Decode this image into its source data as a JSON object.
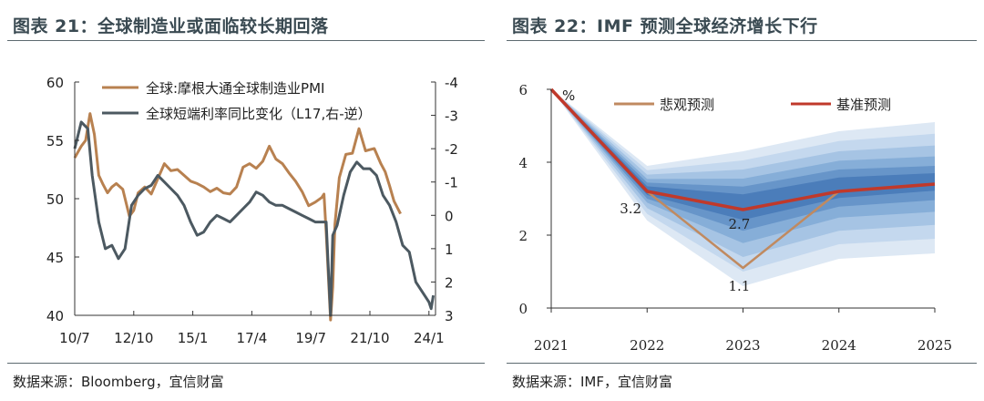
{
  "left_panel": {
    "title": "图表 21：全球制造业或面临较长期回落",
    "source": "数据来源：Bloomberg，宜信财富"
  },
  "right_panel": {
    "title": "图表 22：IMF 预测全球经济增长下行",
    "source": "数据来源：IMF，宜信财富"
  },
  "chart_data": [
    {
      "type": "line",
      "title": "图表 21：全球制造业或面临较长期回落",
      "x_tick_labels": [
        "10/7",
        "12/10",
        "15/1",
        "17/4",
        "19/7",
        "21/10",
        "24/1"
      ],
      "x_range": [
        "2010-07",
        "2024-04"
      ],
      "ylim_left": [
        40,
        60
      ],
      "y_ticks_left": [
        "60",
        "55",
        "50",
        "45",
        "40"
      ],
      "ylim_right": [
        -4,
        3
      ],
      "y_ticks_right": [
        "-4",
        "-3",
        "-2",
        "-1",
        "0",
        "1",
        "2",
        "3"
      ],
      "right_axis_inverted": true,
      "legend_position": "top-right",
      "series": [
        {
          "name": "全球:摩根大通全球制造业PMI",
          "axis": "left",
          "color": "#b88150",
          "points": [
            [
              "2010-07",
              53.5
            ],
            [
              "2010-10",
              54.5
            ],
            [
              "2010-12",
              55.0
            ],
            [
              "2011-02",
              57.3
            ],
            [
              "2011-04",
              55.5
            ],
            [
              "2011-06",
              52.0
            ],
            [
              "2011-08",
              51.2
            ],
            [
              "2011-10",
              50.5
            ],
            [
              "2011-12",
              51.0
            ],
            [
              "2012-02",
              51.3
            ],
            [
              "2012-05",
              50.8
            ],
            [
              "2012-08",
              48.5
            ],
            [
              "2012-10",
              49.0
            ],
            [
              "2012-12",
              50.5
            ],
            [
              "2013-03",
              51.0
            ],
            [
              "2013-06",
              50.4
            ],
            [
              "2013-09",
              51.7
            ],
            [
              "2013-12",
              53.0
            ],
            [
              "2014-03",
              52.4
            ],
            [
              "2014-06",
              52.5
            ],
            [
              "2014-09",
              52.0
            ],
            [
              "2014-12",
              51.5
            ],
            [
              "2015-03",
              51.3
            ],
            [
              "2015-06",
              51.0
            ],
            [
              "2015-09",
              50.6
            ],
            [
              "2015-12",
              50.9
            ],
            [
              "2016-03",
              50.5
            ],
            [
              "2016-06",
              50.4
            ],
            [
              "2016-09",
              51.0
            ],
            [
              "2016-12",
              52.7
            ],
            [
              "2017-03",
              53.0
            ],
            [
              "2017-06",
              52.6
            ],
            [
              "2017-09",
              53.2
            ],
            [
              "2017-12",
              54.5
            ],
            [
              "2018-03",
              53.4
            ],
            [
              "2018-06",
              53.0
            ],
            [
              "2018-09",
              52.2
            ],
            [
              "2018-12",
              51.5
            ],
            [
              "2019-03",
              50.6
            ],
            [
              "2019-06",
              49.4
            ],
            [
              "2019-09",
              49.7
            ],
            [
              "2019-12",
              50.1
            ],
            [
              "2020-01",
              50.4
            ],
            [
              "2020-02",
              47.1
            ],
            [
              "2020-04",
              39.6
            ],
            [
              "2020-05",
              42.4
            ],
            [
              "2020-06",
              47.8
            ],
            [
              "2020-08",
              51.8
            ],
            [
              "2020-11",
              53.8
            ],
            [
              "2021-02",
              53.9
            ],
            [
              "2021-05",
              56.0
            ],
            [
              "2021-08",
              54.1
            ],
            [
              "2021-10",
              54.2
            ],
            [
              "2021-12",
              54.3
            ],
            [
              "2022-03",
              53.0
            ],
            [
              "2022-05",
              52.3
            ],
            [
              "2022-07",
              51.1
            ],
            [
              "2022-09",
              49.8
            ],
            [
              "2022-12",
              48.7
            ]
          ]
        },
        {
          "name": "全球短端利率同比变化（L17,右-逆）",
          "axis": "right",
          "color": "#4c5961",
          "points": [
            [
              "2010-07",
              -2.0
            ],
            [
              "2010-10",
              -2.8
            ],
            [
              "2011-01",
              -2.6
            ],
            [
              "2011-03",
              -1.2
            ],
            [
              "2011-06",
              0.2
            ],
            [
              "2011-09",
              1.0
            ],
            [
              "2011-12",
              0.9
            ],
            [
              "2012-03",
              1.3
            ],
            [
              "2012-06",
              1.0
            ],
            [
              "2012-09",
              -0.3
            ],
            [
              "2012-12",
              -0.6
            ],
            [
              "2013-03",
              -0.8
            ],
            [
              "2013-06",
              -0.9
            ],
            [
              "2013-09",
              -1.2
            ],
            [
              "2013-12",
              -1.0
            ],
            [
              "2014-03",
              -0.8
            ],
            [
              "2014-06",
              -0.6
            ],
            [
              "2014-09",
              -0.3
            ],
            [
              "2014-12",
              0.2
            ],
            [
              "2015-03",
              0.6
            ],
            [
              "2015-06",
              0.5
            ],
            [
              "2015-09",
              0.2
            ],
            [
              "2015-12",
              0.0
            ],
            [
              "2016-03",
              0.1
            ],
            [
              "2016-06",
              0.2
            ],
            [
              "2016-09",
              0.0
            ],
            [
              "2016-12",
              -0.2
            ],
            [
              "2017-03",
              -0.4
            ],
            [
              "2017-06",
              -0.7
            ],
            [
              "2017-09",
              -0.6
            ],
            [
              "2017-12",
              -0.4
            ],
            [
              "2018-03",
              -0.3
            ],
            [
              "2018-06",
              -0.3
            ],
            [
              "2018-09",
              -0.2
            ],
            [
              "2018-12",
              -0.1
            ],
            [
              "2019-03",
              0.0
            ],
            [
              "2019-06",
              0.1
            ],
            [
              "2019-09",
              0.2
            ],
            [
              "2019-12",
              0.2
            ],
            [
              "2020-02",
              0.2
            ],
            [
              "2020-04",
              3.0
            ],
            [
              "2020-05",
              0.6
            ],
            [
              "2020-07",
              0.3
            ],
            [
              "2020-10",
              -0.6
            ],
            [
              "2021-01",
              -1.3
            ],
            [
              "2021-04",
              -1.6
            ],
            [
              "2021-07",
              -1.4
            ],
            [
              "2021-10",
              -1.4
            ],
            [
              "2022-01",
              -1.2
            ],
            [
              "2022-04",
              -0.6
            ],
            [
              "2022-07",
              -0.3
            ],
            [
              "2022-10",
              0.2
            ],
            [
              "2023-01",
              0.9
            ],
            [
              "2023-04",
              1.1
            ],
            [
              "2023-07",
              2.0
            ],
            [
              "2023-10",
              2.3
            ],
            [
              "2024-01",
              2.6
            ],
            [
              "2024-02",
              2.8
            ],
            [
              "2024-03",
              2.4
            ]
          ]
        }
      ]
    },
    {
      "type": "line",
      "title": "图表 22：IMF 预测全球经济增长下行",
      "x": [
        2021,
        2022,
        2023,
        2024,
        2025
      ],
      "x_tick_labels": [
        "2021",
        "2022",
        "2023",
        "2024",
        "2025"
      ],
      "ylim": [
        0,
        6
      ],
      "y_ticks": [
        "0",
        "2",
        "4",
        "6"
      ],
      "y_unit": "%",
      "legend_position": "top",
      "fan_bands": [
        {
          "upper": [
            6,
            3.9,
            4.3,
            4.85,
            5.1
          ],
          "lower": [
            6,
            2.4,
            0.6,
            1.35,
            1.5
          ]
        },
        {
          "upper": [
            6,
            3.78,
            4.05,
            4.58,
            4.78
          ],
          "lower": [
            6,
            2.58,
            1.0,
            1.75,
            1.9
          ]
        },
        {
          "upper": [
            6,
            3.66,
            3.8,
            4.3,
            4.46
          ],
          "lower": [
            6,
            2.74,
            1.4,
            2.12,
            2.28
          ]
        },
        {
          "upper": [
            6,
            3.54,
            3.55,
            4.04,
            4.16
          ],
          "lower": [
            6,
            2.89,
            1.78,
            2.48,
            2.64
          ]
        },
        {
          "upper": [
            6,
            3.44,
            3.33,
            3.8,
            3.9
          ],
          "lower": [
            6,
            3.0,
            2.12,
            2.78,
            2.96
          ]
        },
        {
          "upper": [
            6,
            3.34,
            3.12,
            3.58,
            3.7
          ],
          "lower": [
            6,
            3.1,
            2.42,
            3.02,
            3.22
          ]
        }
      ],
      "series": [
        {
          "name": "悲观预测",
          "color": "#c08a60",
          "values": [
            6.0,
            3.2,
            1.1,
            3.2,
            3.4
          ]
        },
        {
          "name": "基准预测",
          "color": "#c0392b",
          "values": [
            6.0,
            3.2,
            2.7,
            3.2,
            3.4
          ]
        }
      ],
      "annotations": [
        {
          "x": 2022,
          "y": 3.2,
          "text": "3.2"
        },
        {
          "x": 2023,
          "y": 2.7,
          "text": "2.7"
        },
        {
          "x": 2023,
          "y": 1.1,
          "text": "1.1"
        }
      ]
    }
  ]
}
